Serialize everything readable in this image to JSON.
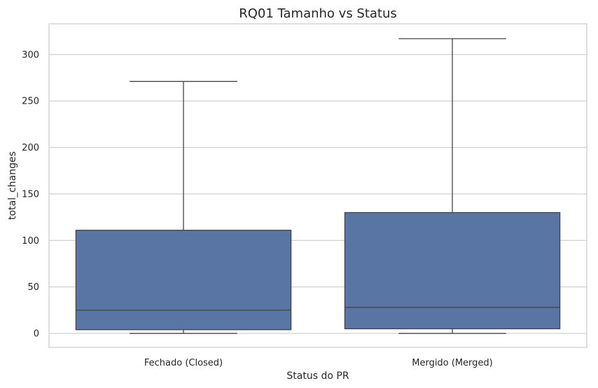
{
  "chart_data": {
    "type": "box",
    "title": "RQ01 Tamanho vs Status",
    "xlabel": "Status do PR",
    "ylabel": "total_changes",
    "ylim": [
      -15,
      333
    ],
    "yticks": [
      0,
      50,
      100,
      150,
      200,
      250,
      300
    ],
    "grid": "horizontal",
    "box_color": "#5975a4",
    "line_color": "#444444",
    "grid_color": "#cccccc",
    "spine_color": "#cccccc",
    "categories": [
      "Fechado (Closed)",
      "Mergido (Merged)"
    ],
    "boxes": [
      {
        "category": "Fechado (Closed)",
        "whisker_low": 0,
        "q1": 4,
        "median": 25,
        "q3": 111,
        "whisker_high": 271
      },
      {
        "category": "Mergido (Merged)",
        "whisker_low": 0,
        "q1": 5,
        "median": 28,
        "q3": 130,
        "whisker_high": 317
      }
    ]
  }
}
